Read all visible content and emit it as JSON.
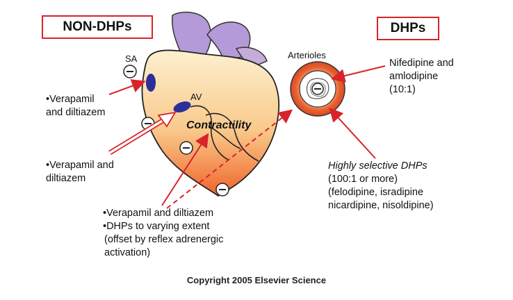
{
  "labels": {
    "non_dhps": "NON-DHPs",
    "dhps": "DHPs",
    "sa": "SA",
    "av": "AV",
    "contractility": "Contractility",
    "arterioles": "Arterioles",
    "minus": "−"
  },
  "left_notes": {
    "note1_line1": "•Verapamil",
    "note1_line2": "and diltiazem",
    "note2_line1": "•Verapamil and",
    "note2_line2": "diltiazem"
  },
  "bottom_notes": {
    "line1": "•Verapamil and diltiazem",
    "line2": "•DHPs to varying extent",
    "line3": "(offset by reflex adrenergic",
    "line4": "activation)"
  },
  "right_notes": {
    "nifedipine_line1": "Nifedipine and",
    "nifedipine_line2": "amlodipine",
    "nifedipine_line3": "(10:1)",
    "selective_line1": "Highly selective DHPs",
    "selective_line2": "(100:1 or more)",
    "selective_line3": "(felodipine, isradipine",
    "selective_line4": "nicardipine, nisoldipine)"
  },
  "footer": {
    "copyright": "Copyright 2005 Elsevier Science"
  },
  "colors": {
    "accent_red": "#d8232a",
    "heart_top": "#fdebc0",
    "heart_bottom": "#f26b2a",
    "vessel_purple": "#b49ad8",
    "node_blue": "#2a2f9a"
  }
}
